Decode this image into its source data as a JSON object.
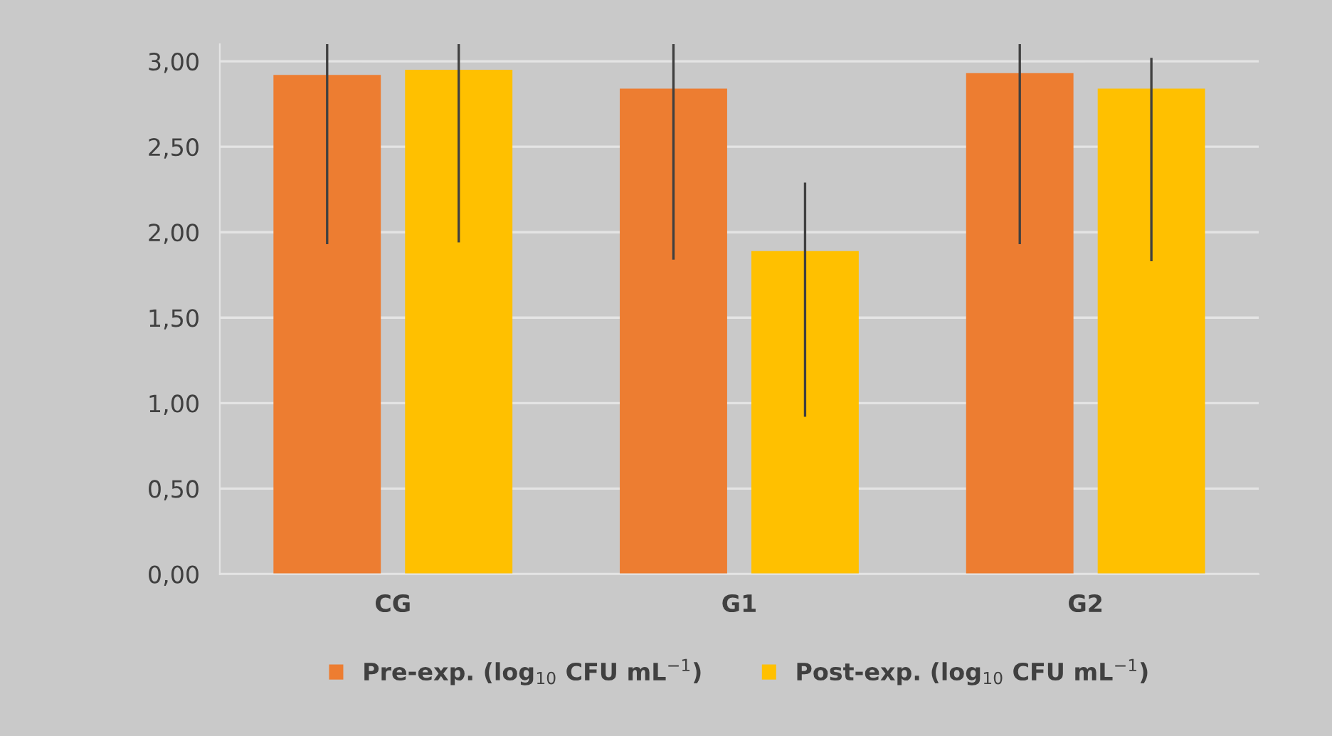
{
  "chart_data": {
    "type": "bar",
    "categories": [
      "CG",
      "G1",
      "G2"
    ],
    "series": [
      {
        "name": "Pre-exp. (log$_{10}$ CFU mL$^{−1}$)",
        "color": "#ed7d31",
        "values": [
          2.92,
          2.84,
          2.93
        ],
        "errors": [
          [
            1.93,
            3.1
          ],
          [
            1.84,
            3.1
          ],
          [
            1.93,
            3.1
          ]
        ]
      },
      {
        "name": "Post-exp. (log$_{10}$ CFU mL$^{−1}$)",
        "color": "#ffc000",
        "values": [
          2.95,
          1.89,
          2.84
        ],
        "errors": [
          [
            1.94,
            3.1
          ],
          [
            0.92,
            2.29
          ],
          [
            1.83,
            3.02
          ]
        ]
      }
    ],
    "ylim": [
      0,
      3.1
    ],
    "yticks": [
      {
        "value": 0,
        "label": "0,00"
      },
      {
        "value": 0.5,
        "label": "0,50"
      },
      {
        "value": 1,
        "label": "1,00"
      },
      {
        "value": 1.5,
        "label": "1,50"
      },
      {
        "value": 2,
        "label": "2,00"
      },
      {
        "value": 2.5,
        "label": "2,50"
      },
      {
        "value": 3,
        "label": "3,00"
      }
    ],
    "grid": "y",
    "legend": "bottom"
  }
}
